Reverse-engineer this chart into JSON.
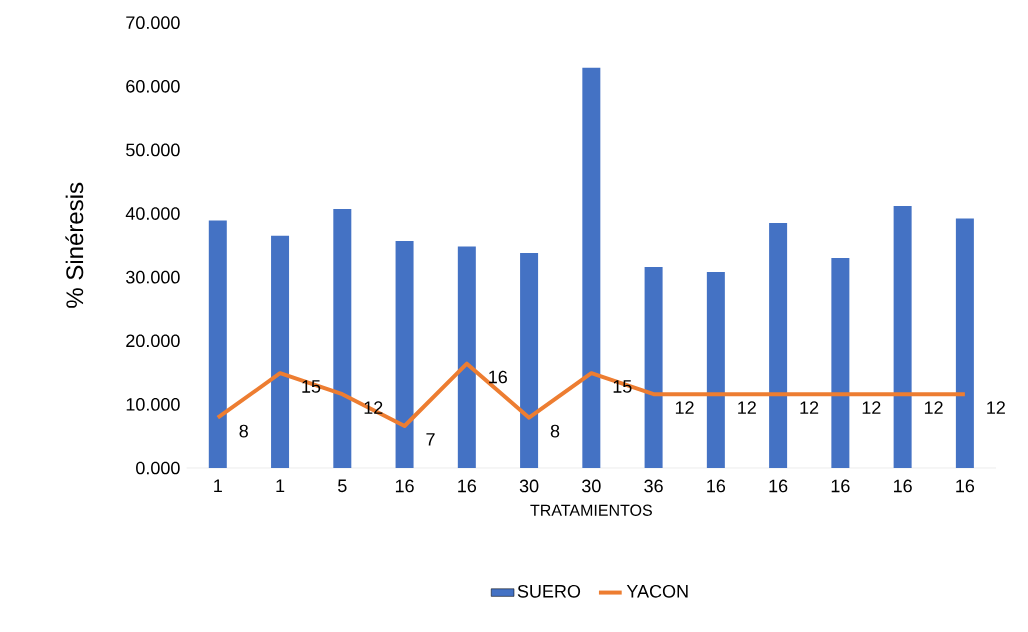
{
  "chart_data": {
    "type": "bar",
    "xlabel": "TRATAMIENTOS",
    "ylabel": "% Sinéresis",
    "categories": [
      "1",
      "1",
      "5",
      "16",
      "16",
      "30",
      "30",
      "36",
      "16",
      "16",
      "16",
      "16",
      "16"
    ],
    "series": [
      {
        "name": "SUERO",
        "color": "#4472c4",
        "values": [
          38.9,
          36.5,
          40.7,
          35.7,
          34.8,
          33.8,
          62.9,
          31.6,
          30.8,
          38.5,
          33.0,
          41.2,
          39.2
        ]
      },
      {
        "name": "YACON",
        "type": "line",
        "color": "#ed7d31",
        "values": [
          7.9,
          14.9,
          11.6,
          6.6,
          16.4,
          7.9,
          14.9,
          11.6,
          11.6,
          11.6,
          11.6,
          11.6,
          11.6
        ],
        "value_labels": [
          "8",
          "15",
          "12",
          "7",
          "16",
          "8",
          "15",
          "12",
          "12",
          "12",
          "12",
          "12",
          "12"
        ]
      }
    ],
    "ylim": [
      0,
      70
    ],
    "yticks": [
      {
        "value": 0,
        "label": "0.000"
      },
      {
        "value": 10,
        "label": "10.000"
      },
      {
        "value": 20,
        "label": "20.000"
      },
      {
        "value": 30,
        "label": "30.000"
      },
      {
        "value": 40,
        "label": "40.000"
      },
      {
        "value": 50,
        "label": "50.000"
      },
      {
        "value": 60,
        "label": "60.000"
      },
      {
        "value": 70,
        "label": "70.000"
      }
    ],
    "grid": false,
    "legend": "bottom",
    "marker": "none"
  }
}
